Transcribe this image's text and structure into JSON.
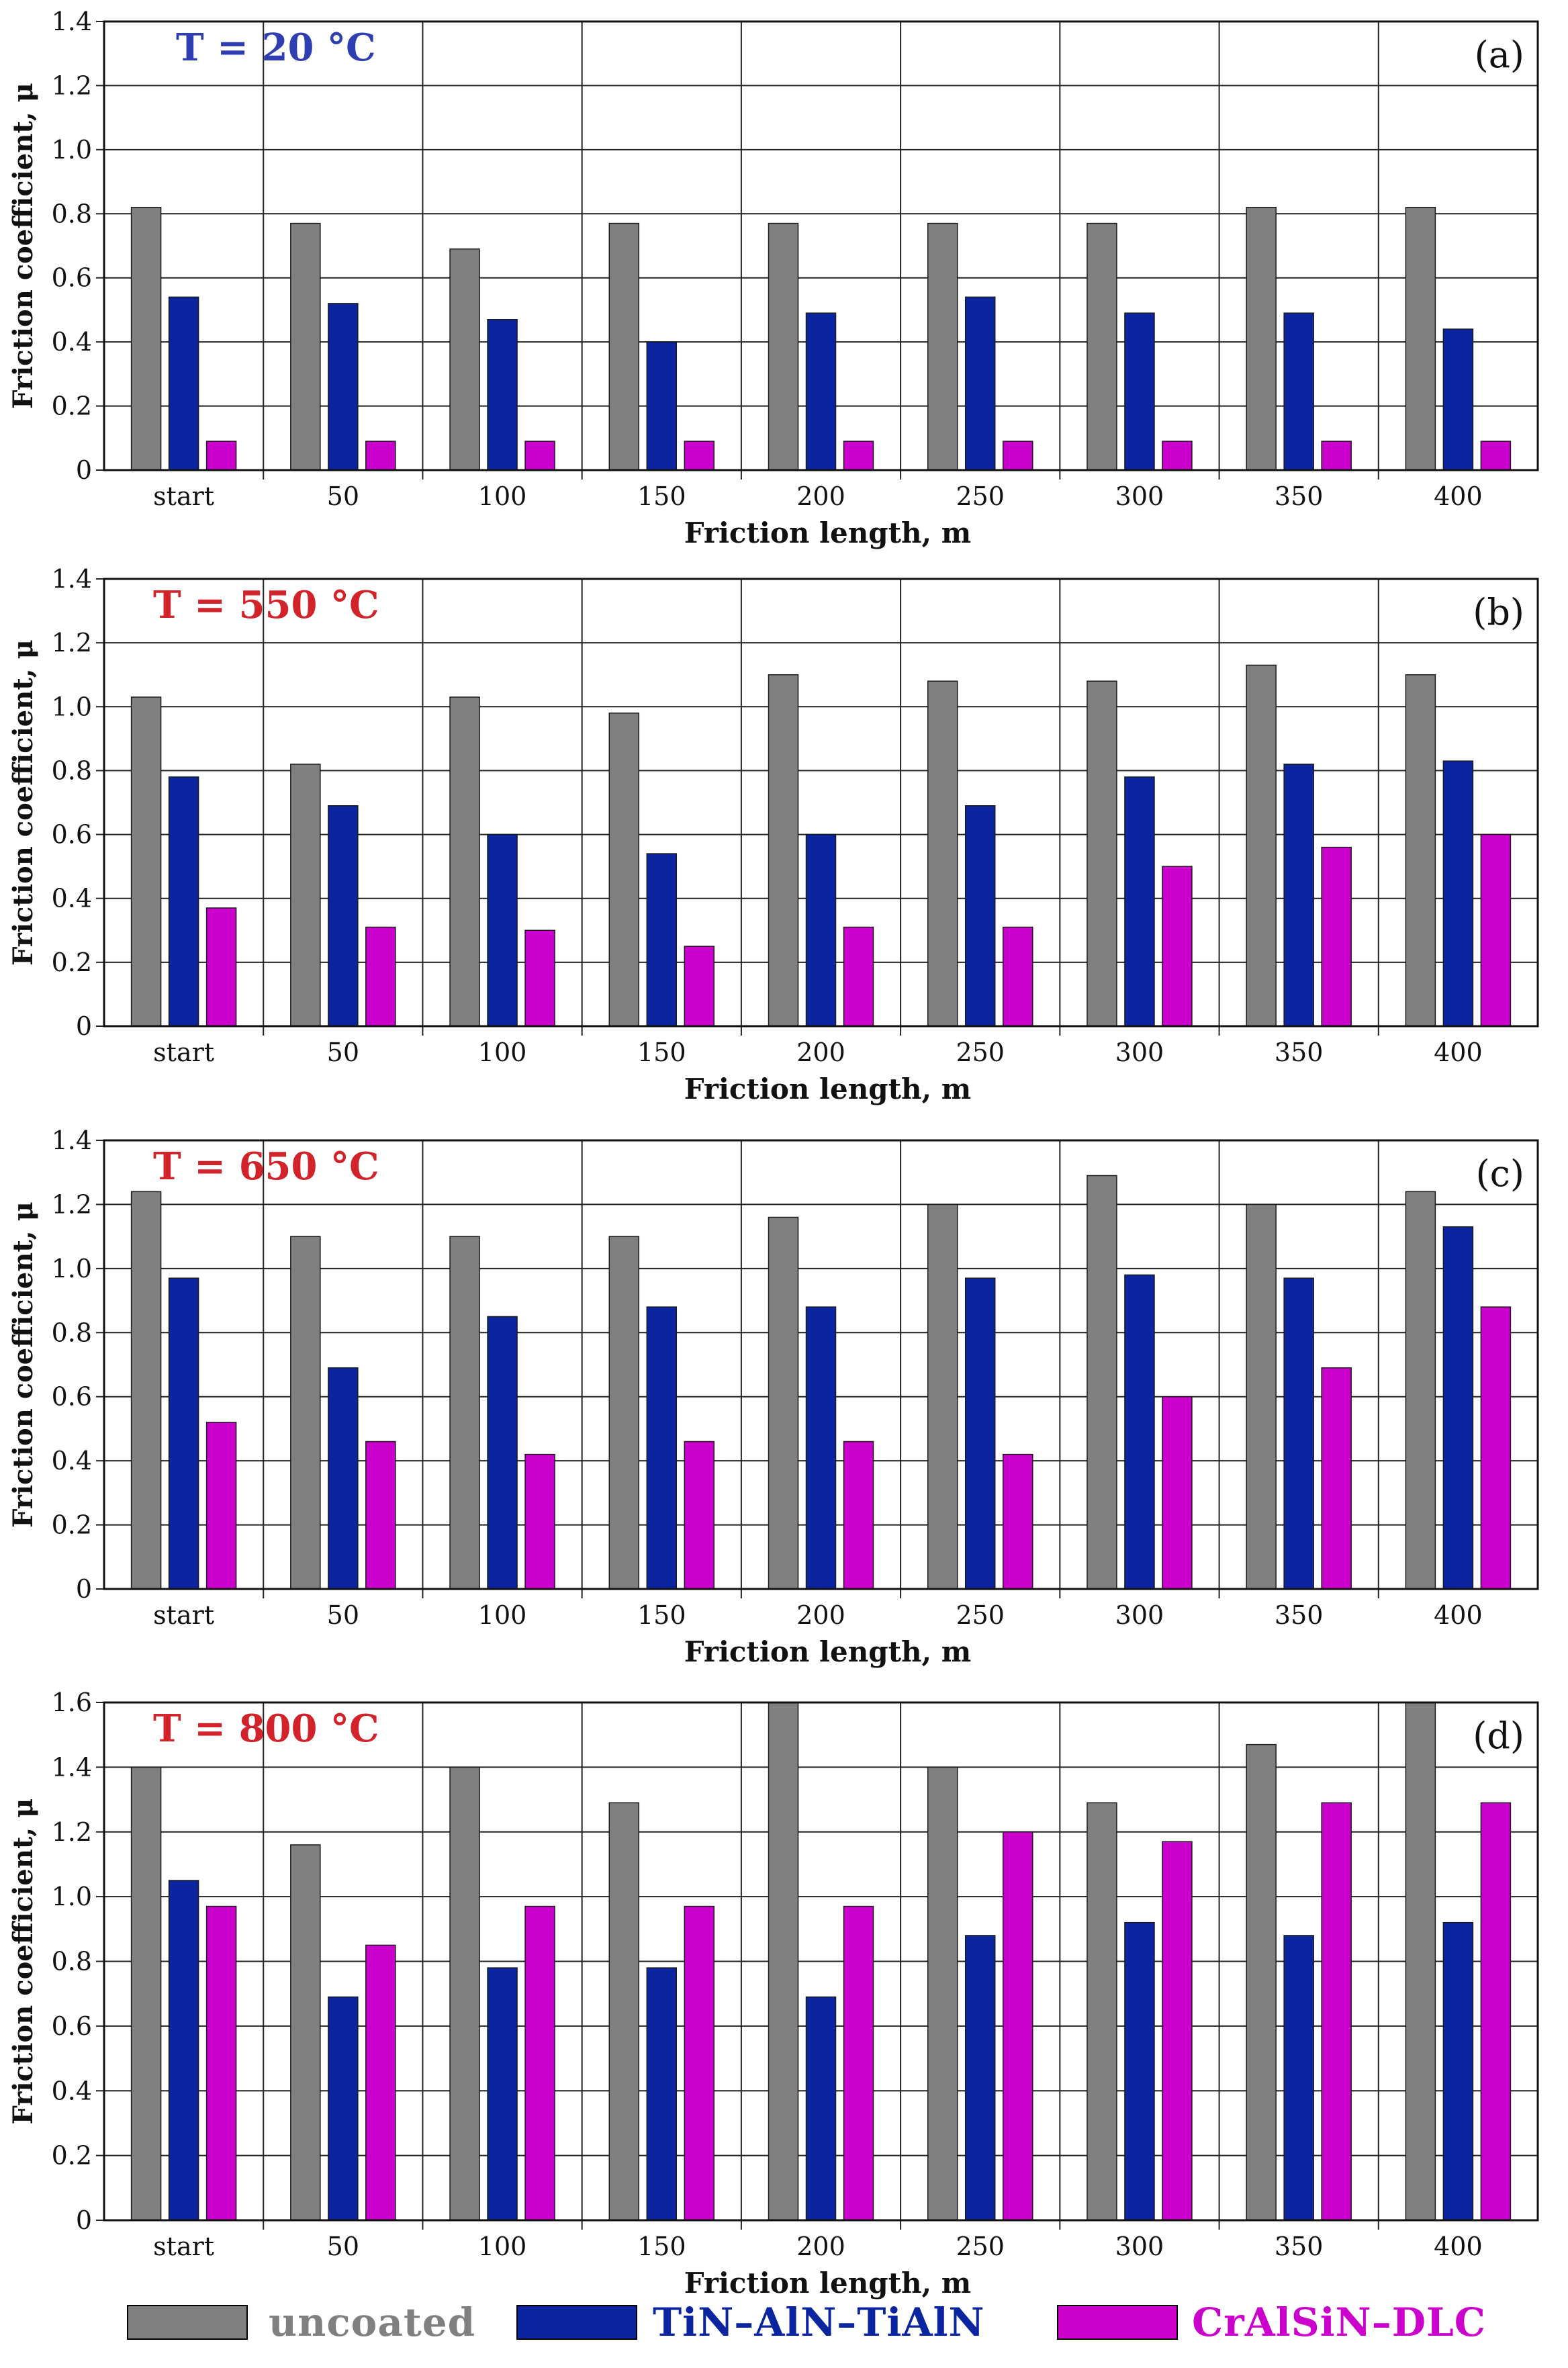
{
  "figure": {
    "colors": {
      "uncoated": "#808080",
      "tin": "#0b24a0",
      "cralsin": "#cc00cc",
      "temp_blue": "#2f3fb2",
      "temp_red": "#d2232a",
      "grid": "#222222"
    }
  },
  "legend": {
    "items": [
      {
        "key": "uncoated",
        "label": "uncoated"
      },
      {
        "key": "tin",
        "label": "TiN–AlN–TiAlN"
      },
      {
        "key": "cralsin",
        "label": "CrAlSiN–DLC"
      }
    ]
  },
  "chart_data": [
    {
      "id": "a",
      "type": "bar",
      "panel_label": "(a)",
      "temp_label": "T = 20 °C",
      "temp_color_key": "temp_blue",
      "xlabel": "Friction length, m",
      "ylabel": "Friction coefficient, μ",
      "ylim": [
        0,
        1.4
      ],
      "yticks": [
        0,
        0.2,
        0.4,
        0.6,
        0.8,
        1.0,
        1.2,
        1.4
      ],
      "ytick_labels": [
        "0",
        "0.2",
        "0.4",
        "0.6",
        "0.8",
        "1.0",
        "1.2",
        "1.4"
      ],
      "categories": [
        "start",
        "50",
        "100",
        "150",
        "200",
        "250",
        "300",
        "350",
        "400"
      ],
      "series": [
        {
          "name": "uncoated",
          "color_key": "uncoated",
          "values": [
            0.82,
            0.77,
            0.69,
            0.77,
            0.77,
            0.77,
            0.77,
            0.82,
            0.82
          ]
        },
        {
          "name": "TiN–AlN–TiAlN",
          "color_key": "tin",
          "values": [
            0.54,
            0.52,
            0.47,
            0.4,
            0.49,
            0.54,
            0.49,
            0.49,
            0.44
          ]
        },
        {
          "name": "CrAlSiN–DLC",
          "color_key": "cralsin",
          "values": [
            0.09,
            0.09,
            0.09,
            0.09,
            0.09,
            0.09,
            0.09,
            0.09,
            0.09
          ]
        }
      ]
    },
    {
      "id": "b",
      "type": "bar",
      "panel_label": "(b)",
      "temp_label": "T = 550 °C",
      "temp_color_key": "temp_red",
      "xlabel": "Friction length, m",
      "ylabel": "Friction coefficient, μ",
      "ylim": [
        0,
        1.4
      ],
      "yticks": [
        0,
        0.2,
        0.4,
        0.6,
        0.8,
        1.0,
        1.2,
        1.4
      ],
      "ytick_labels": [
        "0",
        "0.2",
        "0.4",
        "0.6",
        "0.8",
        "1.0",
        "1.2",
        "1.4"
      ],
      "categories": [
        "start",
        "50",
        "100",
        "150",
        "200",
        "250",
        "300",
        "350",
        "400"
      ],
      "series": [
        {
          "name": "uncoated",
          "color_key": "uncoated",
          "values": [
            1.03,
            0.82,
            1.03,
            0.98,
            1.1,
            1.08,
            1.08,
            1.13,
            1.1
          ]
        },
        {
          "name": "TiN–AlN–TiAlN",
          "color_key": "tin",
          "values": [
            0.78,
            0.69,
            0.6,
            0.54,
            0.6,
            0.69,
            0.78,
            0.82,
            0.83
          ]
        },
        {
          "name": "CrAlSiN–DLC",
          "color_key": "cralsin",
          "values": [
            0.37,
            0.31,
            0.3,
            0.25,
            0.31,
            0.31,
            0.5,
            0.56,
            0.6
          ]
        }
      ]
    },
    {
      "id": "c",
      "type": "bar",
      "panel_label": "(c)",
      "temp_label": "T = 650 °C",
      "temp_color_key": "temp_red",
      "xlabel": "Friction length, m",
      "ylabel": "Friction coefficient, μ",
      "ylim": [
        0,
        1.4
      ],
      "yticks": [
        0,
        0.2,
        0.4,
        0.6,
        0.8,
        1.0,
        1.2,
        1.4
      ],
      "ytick_labels": [
        "0",
        "0.2",
        "0.4",
        "0.6",
        "0.8",
        "1.0",
        "1.2",
        "1.4"
      ],
      "categories": [
        "start",
        "50",
        "100",
        "150",
        "200",
        "250",
        "300",
        "350",
        "400"
      ],
      "series": [
        {
          "name": "uncoated",
          "color_key": "uncoated",
          "values": [
            1.24,
            1.1,
            1.1,
            1.1,
            1.16,
            1.2,
            1.29,
            1.2,
            1.24
          ]
        },
        {
          "name": "TiN–AlN–TiAlN",
          "color_key": "tin",
          "values": [
            0.97,
            0.69,
            0.85,
            0.88,
            0.88,
            0.97,
            0.98,
            0.97,
            1.13
          ]
        },
        {
          "name": "CrAlSiN–DLC",
          "color_key": "cralsin",
          "values": [
            0.52,
            0.46,
            0.42,
            0.46,
            0.46,
            0.42,
            0.6,
            0.69,
            0.88
          ]
        }
      ]
    },
    {
      "id": "d",
      "type": "bar",
      "panel_label": "(d)",
      "temp_label": "T = 800 °C",
      "temp_color_key": "temp_red",
      "xlabel": "Friction length, m",
      "ylabel": "Friction coefficient, μ",
      "ylim": [
        0,
        1.6
      ],
      "yticks": [
        0,
        0.2,
        0.4,
        0.6,
        0.8,
        1.0,
        1.2,
        1.4,
        1.6
      ],
      "ytick_labels": [
        "0",
        "0.2",
        "0.4",
        "0.6",
        "0.8",
        "1.0",
        "1.2",
        "1.4",
        "1.6"
      ],
      "categories": [
        "start",
        "50",
        "100",
        "150",
        "200",
        "250",
        "300",
        "350",
        "400"
      ],
      "series": [
        {
          "name": "uncoated",
          "color_key": "uncoated",
          "values": [
            1.4,
            1.16,
            1.4,
            1.29,
            1.6,
            1.4,
            1.29,
            1.47,
            1.6
          ]
        },
        {
          "name": "TiN–AlN–TiAlN",
          "color_key": "tin",
          "values": [
            1.05,
            0.69,
            0.78,
            0.78,
            0.69,
            0.88,
            0.92,
            0.88,
            0.92
          ]
        },
        {
          "name": "CrAlSiN–DLC",
          "color_key": "cralsin",
          "values": [
            0.97,
            0.85,
            0.97,
            0.97,
            0.97,
            1.2,
            1.17,
            1.29,
            1.29
          ]
        }
      ]
    }
  ]
}
